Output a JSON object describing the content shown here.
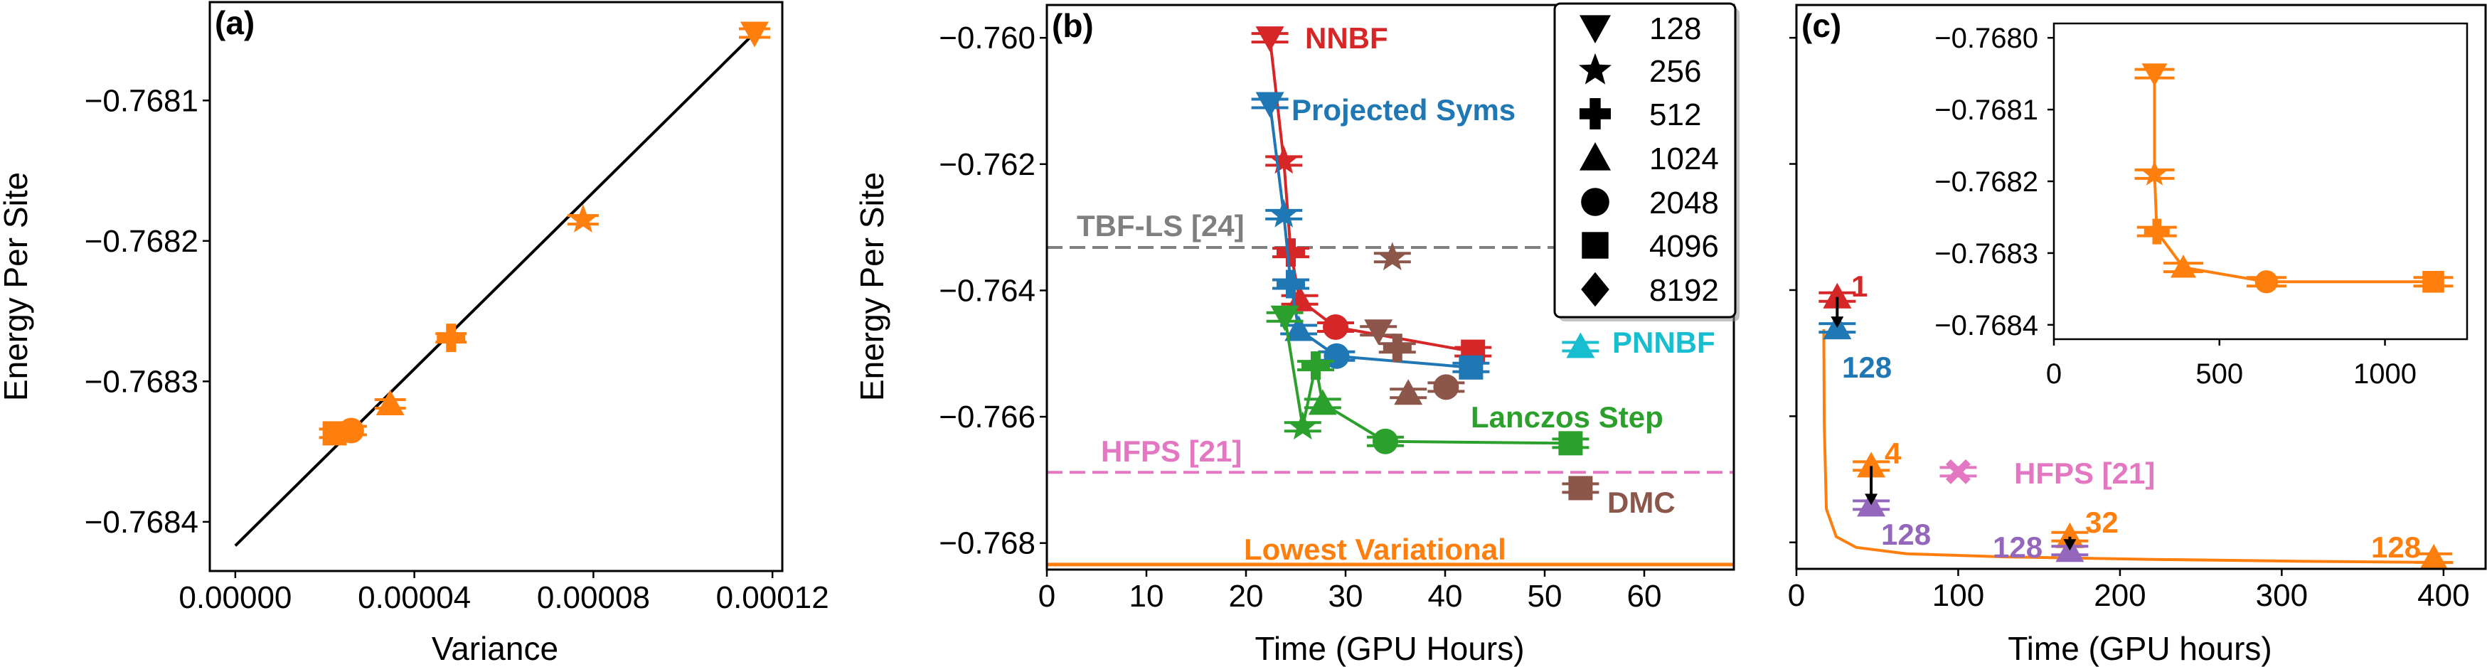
{
  "colors": {
    "orange": "#ff7f0e",
    "red": "#d62728",
    "blue": "#1f77b4",
    "green": "#2ca02c",
    "brown": "#8c564b",
    "cyan": "#17becf",
    "pink": "#e377c2",
    "purple": "#9467bd",
    "gray": "#7f7f7f"
  },
  "marker_map": {
    "128": "triangle-down",
    "256": "star",
    "512": "plus",
    "1024": "triangle-up",
    "2048": "circle",
    "4096": "square",
    "8192": "diamond"
  },
  "chart_data": [
    {
      "panel": "(a)",
      "type": "scatter",
      "xlabel": "Variance",
      "ylabel": "Energy Per Site",
      "xlim": [
        -5.7e-06,
        0.0001222
      ],
      "ylim": [
        -0.768435,
        -0.76803
      ],
      "xticks": [
        0,
        4e-05,
        8e-05,
        0.00012
      ],
      "xtick_labels": [
        "0.00000",
        "0.00004",
        "0.00008",
        "0.00012"
      ],
      "yticks": [
        -0.7681,
        -0.7682,
        -0.7683,
        -0.7684
      ],
      "ytick_labels": [
        "−0.7681",
        "−0.7682",
        "−0.7683",
        "−0.7684"
      ],
      "grid": false,
      "color": "orange",
      "points": [
        {
          "samples": "128",
          "x": 0.000116,
          "y": -0.768052
        },
        {
          "samples": "256",
          "x": 7.77e-05,
          "y": -0.768185
        },
        {
          "samples": "512",
          "x": 4.82e-05,
          "y": -0.768269
        },
        {
          "samples": "1024",
          "x": 3.46e-05,
          "y": -0.768316
        },
        {
          "samples": "2048",
          "x": 2.59e-05,
          "y": -0.768335
        },
        {
          "samples": "4096",
          "x": 2.22e-05,
          "y": -0.768337
        }
      ],
      "fit_line": {
        "x": [
          0,
          0.000116
        ],
        "y": [
          -0.768417,
          -0.768052
        ],
        "color": "#000000"
      }
    },
    {
      "panel": "(b)",
      "type": "line",
      "xlabel": "Time (GPU Hours)",
      "ylabel": "Energy Per Site",
      "xlim": [
        0,
        69
      ],
      "ylim": [
        -0.76842,
        -0.75948
      ],
      "xticks": [
        0,
        10,
        20,
        30,
        40,
        50,
        60
      ],
      "xtick_labels": [
        "0",
        "10",
        "20",
        "30",
        "40",
        "50",
        "60"
      ],
      "yticks": [
        -0.76,
        -0.762,
        -0.764,
        -0.766,
        -0.768
      ],
      "ytick_labels": [
        "−0.760",
        "−0.762",
        "−0.764",
        "−0.766",
        "−0.768"
      ],
      "grid": false,
      "legend": {
        "placement": "top-right",
        "entries": [
          "128",
          "256",
          "512",
          "1024",
          "2048",
          "4096",
          "8192"
        ]
      },
      "series": [
        {
          "name": "NNBF",
          "color": "red",
          "connected": true,
          "points": [
            {
              "samples": "128",
              "x": 22.4,
              "y": -0.76
            },
            {
              "samples": "256",
              "x": 23.8,
              "y": -0.76195
            },
            {
              "samples": "512",
              "x": 24.5,
              "y": -0.7634
            },
            {
              "samples": "1024",
              "x": 25.4,
              "y": -0.76415
            },
            {
              "samples": "2048",
              "x": 29.0,
              "y": -0.76458
            },
            {
              "samples": "4096",
              "x": 42.8,
              "y": -0.76497
            }
          ]
        },
        {
          "name": "Projected Syms",
          "color": "blue",
          "connected": true,
          "points": [
            {
              "samples": "128",
              "x": 22.4,
              "y": -0.76104
            },
            {
              "samples": "256",
              "x": 23.8,
              "y": -0.7628
            },
            {
              "samples": "512",
              "x": 24.5,
              "y": -0.7639
            },
            {
              "samples": "1024",
              "x": 25.3,
              "y": -0.76462
            },
            {
              "samples": "2048",
              "x": 29.1,
              "y": -0.76504
            },
            {
              "samples": "4096",
              "x": 42.6,
              "y": -0.76522
            }
          ]
        },
        {
          "name": "Lanczos Step",
          "color": "green",
          "connected": true,
          "points": [
            {
              "samples": "128",
              "x": 23.9,
              "y": -0.76442
            },
            {
              "samples": "256",
              "x": 25.7,
              "y": -0.76616
            },
            {
              "samples": "512",
              "x": 27.0,
              "y": -0.76519
            },
            {
              "samples": "1024",
              "x": 27.7,
              "y": -0.76579
            },
            {
              "samples": "2048",
              "x": 34.0,
              "y": -0.76639
            },
            {
              "samples": "4096",
              "x": 52.6,
              "y": -0.76642
            }
          ]
        },
        {
          "name": "DMC",
          "color": "brown",
          "connected": false,
          "points": [
            {
              "samples": "128",
              "x": 33.3,
              "y": -0.76464
            },
            {
              "samples": "256",
              "x": 34.7,
              "y": -0.76348
            },
            {
              "samples": "512",
              "x": 35.2,
              "y": -0.76491
            },
            {
              "samples": "1024",
              "x": 36.3,
              "y": -0.76563
            },
            {
              "samples": "2048",
              "x": 40.1,
              "y": -0.76553
            },
            {
              "samples": "4096",
              "x": 53.6,
              "y": -0.76713
            }
          ]
        },
        {
          "name": "PNNBF",
          "color": "cyan",
          "connected": false,
          "points": [
            {
              "samples": "1024",
              "x": 53.6,
              "y": -0.76489
            }
          ]
        }
      ],
      "reference_lines": [
        {
          "name": "TBF-LS [24]",
          "y": -0.76332,
          "color": "gray",
          "style": "dashed"
        },
        {
          "name": "HFPS [21]",
          "y": -0.76688,
          "color": "pink",
          "style": "dashed"
        },
        {
          "name": "Lowest Variational",
          "y": -0.76834,
          "color": "orange",
          "style": "solid"
        }
      ]
    },
    {
      "panel": "(c)",
      "type": "line",
      "xlabel": "Time (GPU hours)",
      "ylabel": "",
      "xlim": [
        0,
        426
      ],
      "ylim": [
        -0.76842,
        -0.75948
      ],
      "xticks": [
        0,
        100,
        200,
        300,
        400
      ],
      "xtick_labels": [
        "0",
        "100",
        "200",
        "300",
        "400"
      ],
      "yticks": [
        -0.76,
        -0.762,
        -0.764,
        -0.766,
        -0.768
      ],
      "grid": false,
      "curve": {
        "color": "orange",
        "x": [
          16.9,
          17.2,
          18.5,
          24.6,
          37,
          68,
          129,
          221,
          314,
          406
        ],
        "y": [
          -0.76462,
          -0.76613,
          -0.76747,
          -0.76791,
          -0.76808,
          -0.76818,
          -0.76823,
          -0.76827,
          -0.7683,
          -0.76832
        ]
      },
      "points": [
        {
          "label": "1",
          "color": "red",
          "marker": "triangle-up",
          "x": 25.2,
          "y": -0.76411
        },
        {
          "label": "128",
          "color": "blue",
          "marker": "triangle-up",
          "x": 25.2,
          "y": -0.7646
        },
        {
          "label": "4",
          "color": "orange",
          "marker": "triangle-up",
          "x": 46.2,
          "y": -0.76679
        },
        {
          "label": "128",
          "color": "purple",
          "marker": "triangle-up",
          "x": 46.2,
          "y": -0.76741
        },
        {
          "label": "HFPS [21]",
          "color": "pink",
          "marker": "x",
          "x": 100,
          "y": -0.76688
        },
        {
          "label": "32",
          "color": "orange",
          "marker": "triangle-up",
          "x": 169,
          "y": -0.76791
        },
        {
          "label": "128",
          "color": "purple",
          "marker": "triangle-up",
          "x": 169,
          "y": -0.76813
        },
        {
          "label": "128",
          "color": "orange",
          "marker": "triangle-up",
          "x": 394,
          "y": -0.76825
        }
      ],
      "arrows": [
        {
          "from": [
            25.2,
            -0.76411
          ],
          "to": [
            25.2,
            -0.7646
          ]
        },
        {
          "from": [
            46.2,
            -0.76679
          ],
          "to": [
            46.2,
            -0.76741
          ]
        },
        {
          "from": [
            169,
            -0.76791
          ],
          "to": [
            169,
            -0.76813
          ]
        }
      ],
      "inset": {
        "type": "line",
        "xlim": [
          0,
          1248
        ],
        "ylim": [
          -0.76842,
          -0.76798
        ],
        "xticks": [
          0,
          500,
          1000
        ],
        "xtick_labels": [
          "0",
          "500",
          "1000"
        ],
        "yticks": [
          -0.768,
          -0.7681,
          -0.7682,
          -0.7683,
          -0.7684
        ],
        "ytick_labels": [
          "−0.7680",
          "−0.7681",
          "−0.7682",
          "−0.7683",
          "−0.7684"
        ],
        "color": "orange",
        "points": [
          {
            "samples": "128",
            "x": 304,
            "y": -0.76805
          },
          {
            "samples": "256",
            "x": 304,
            "y": -0.76819
          },
          {
            "samples": "512",
            "x": 311,
            "y": -0.76827
          },
          {
            "samples": "1024",
            "x": 391,
            "y": -0.76832
          },
          {
            "samples": "2048",
            "x": 642,
            "y": -0.76834
          },
          {
            "samples": "4096",
            "x": 1146,
            "y": -0.76834
          }
        ]
      }
    }
  ]
}
